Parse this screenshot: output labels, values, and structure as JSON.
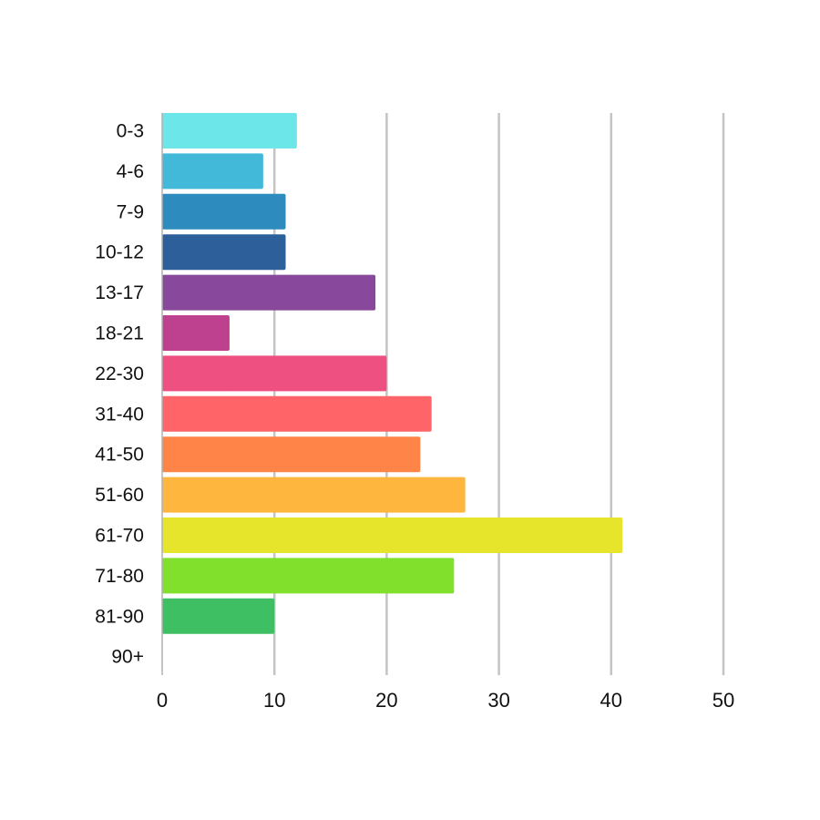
{
  "chart_data": {
    "type": "bar",
    "orientation": "horizontal",
    "title": "",
    "xlabel": "",
    "ylabel": "",
    "categories": [
      "0-3",
      "4-6",
      "7-9",
      "10-12",
      "13-17",
      "18-21",
      "22-30",
      "31-40",
      "41-50",
      "51-60",
      "61-70",
      "71-80",
      "81-90",
      "90+"
    ],
    "values": [
      12,
      9,
      11,
      11,
      19,
      6,
      20,
      24,
      23,
      27,
      41,
      26,
      10,
      0
    ],
    "colors": [
      "#6de6e9",
      "#43b9d9",
      "#2d8cbd",
      "#2d5f9b",
      "#88489b",
      "#bd418e",
      "#ef5082",
      "#ff6468",
      "#ff8447",
      "#ffb63e",
      "#e6e42b",
      "#80e02b",
      "#3ebf63",
      "#cccccc"
    ],
    "xlim": [
      0,
      50
    ],
    "xticks": [
      0,
      10,
      20,
      30,
      40,
      50
    ],
    "grid": true,
    "legend": "none"
  }
}
